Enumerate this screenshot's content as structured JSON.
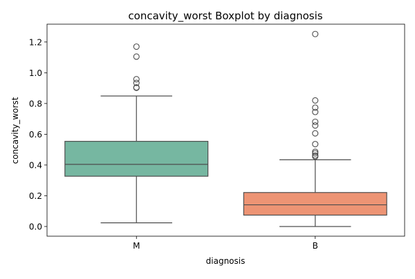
{
  "chart_data": {
    "type": "boxplot",
    "title": "concavity_worst Boxplot by diagnosis",
    "xlabel": "diagnosis",
    "ylabel": "concavity_worst",
    "ylim": [
      -0.063,
      1.316
    ],
    "yticks": [
      "0.0",
      "0.2",
      "0.4",
      "0.6",
      "0.8",
      "1.0",
      "1.2"
    ],
    "categories": [
      "M",
      "B"
    ],
    "grid": false,
    "legend": "none",
    "boxes": [
      {
        "category": "M",
        "color": "#76b7a1",
        "q1": 0.327,
        "median": 0.404,
        "q3": 0.554,
        "whisker_low": 0.024,
        "whisker_high": 0.849,
        "outliers": [
          0.902,
          0.905,
          0.934,
          0.958,
          1.105,
          1.17
        ]
      },
      {
        "category": "B",
        "color": "#ed9474",
        "q1": 0.074,
        "median": 0.141,
        "q3": 0.221,
        "whisker_low": 0.0,
        "whisker_high": 0.434,
        "outliers": [
          0.455,
          0.462,
          0.476,
          0.486,
          0.536,
          0.606,
          0.657,
          0.681,
          0.745,
          0.773,
          0.82,
          1.252
        ]
      }
    ]
  }
}
